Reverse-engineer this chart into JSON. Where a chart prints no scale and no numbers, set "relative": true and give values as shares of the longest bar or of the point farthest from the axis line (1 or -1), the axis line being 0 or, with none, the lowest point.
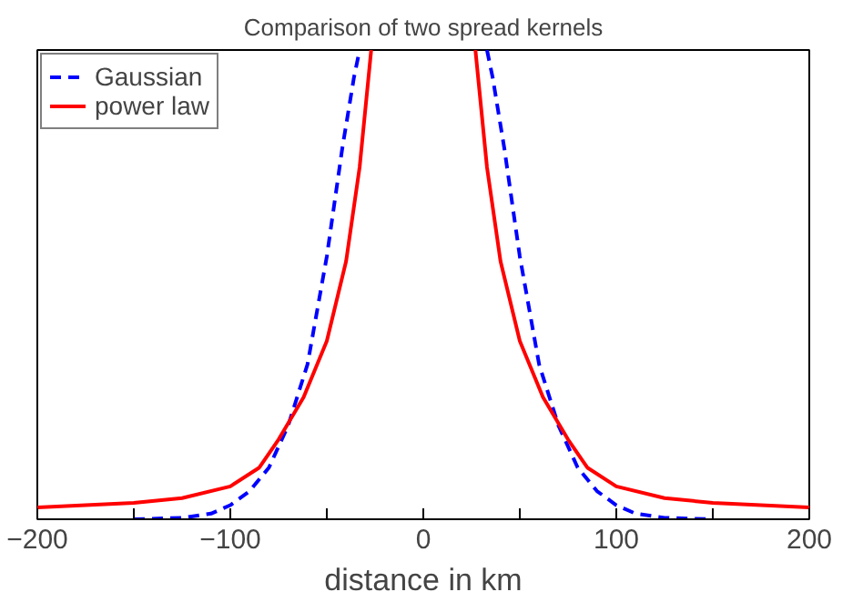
{
  "chart_data": {
    "type": "line",
    "title": "Comparison of two spread kernels",
    "xlabel": "distance in km",
    "relative": true,
    "xlim": [
      -200,
      200
    ],
    "xticks": [
      -200,
      {
        "value": -150,
        "label": null
      },
      -100,
      {
        "value": -50,
        "label": null
      },
      0,
      {
        "value": 50,
        "label": null
      },
      100,
      {
        "value": 150,
        "label": null
      },
      200
    ],
    "legend": "top left",
    "grid": false,
    "series": [
      {
        "name": "Gaussian",
        "color": "#0000ff",
        "line_style": "dashed",
        "x": [
          -150,
          -125,
          -110,
          -100,
          -90,
          -80,
          -70,
          -60,
          -50,
          -42,
          -36,
          -33,
          0,
          33,
          36,
          42,
          50,
          60,
          70,
          80,
          90,
          100,
          110,
          125,
          150
        ],
        "values": [
          0,
          0.003,
          0.012,
          0.03,
          0.06,
          0.11,
          0.2,
          0.33,
          0.56,
          0.79,
          0.94,
          1,
          null,
          1,
          0.94,
          0.79,
          0.56,
          0.33,
          0.2,
          0.11,
          0.06,
          0.03,
          0.012,
          0.003,
          0
        ]
      },
      {
        "name": "power law",
        "color": "#ff0000",
        "line_style": "solid",
        "x": [
          -200,
          -175,
          -150,
          -125,
          -100,
          -85,
          -75,
          -62,
          -50,
          -40,
          -33,
          -27,
          0,
          27,
          33,
          40,
          50,
          62,
          75,
          85,
          100,
          125,
          150,
          175,
          200
        ],
        "values": [
          0.025,
          0.03,
          0.035,
          0.045,
          0.07,
          0.11,
          0.17,
          0.26,
          0.38,
          0.55,
          0.75,
          1,
          null,
          1,
          0.75,
          0.55,
          0.38,
          0.26,
          0.17,
          0.11,
          0.07,
          0.045,
          0.035,
          0.03,
          0.025
        ]
      }
    ]
  }
}
